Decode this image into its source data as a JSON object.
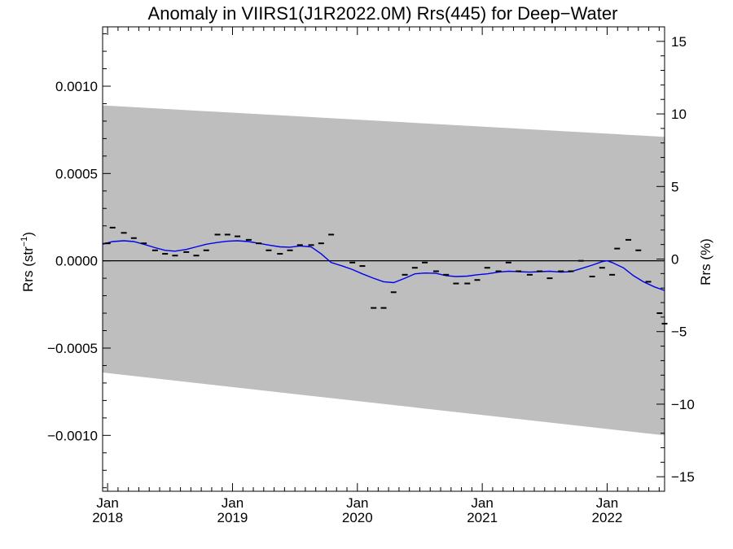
{
  "chart_data": {
    "type": "line",
    "title": "Anomaly in VIIRS1(J1R2022.0M) Rrs(445) for Deep−Water",
    "ylabel_main": "Rrs (str",
    "ylabel_sup": "−1",
    "ylabel_close": ")",
    "ylabel_right": "Rrs (%)",
    "xlim": [
      2017.96,
      2022.46
    ],
    "ylim": [
      -0.00132,
      0.00134
    ],
    "ylim_right": [
      -16.0,
      16.0
    ],
    "x_ticks": [
      {
        "x": 2018.0,
        "month": "Jan",
        "year": "2018"
      },
      {
        "x": 2019.0,
        "month": "Jan",
        "year": "2019"
      },
      {
        "x": 2020.0,
        "month": "Jan",
        "year": "2020"
      },
      {
        "x": 2021.0,
        "month": "Jan",
        "year": "2021"
      },
      {
        "x": 2022.0,
        "month": "Jan",
        "year": "2022"
      }
    ],
    "y_ticks": [
      {
        "v": 0.001,
        "label": "0.0010"
      },
      {
        "v": 0.0005,
        "label": "0.0005"
      },
      {
        "v": 0.0,
        "label": "0.0000"
      },
      {
        "v": -0.0005,
        "label": "−0.0005"
      },
      {
        "v": -0.001,
        "label": "−0.0010"
      }
    ],
    "y_ticks_right": [
      {
        "v": 15,
        "label": "15"
      },
      {
        "v": 10,
        "label": "10"
      },
      {
        "v": 5,
        "label": "5"
      },
      {
        "v": 0,
        "label": "0"
      },
      {
        "v": -5,
        "label": "−5"
      },
      {
        "v": -10,
        "label": "−10"
      },
      {
        "v": -15,
        "label": "−15"
      }
    ],
    "band": {
      "upper": [
        [
          2017.96,
          0.00089
        ],
        [
          2022.46,
          0.00071
        ]
      ],
      "lower": [
        [
          2017.96,
          -0.00064
        ],
        [
          2022.46,
          -0.001
        ]
      ],
      "color": "#bebebe"
    },
    "zero_line": 0.0,
    "monthly_points": [
      [
        2018.0,
        0.0001
      ],
      [
        2018.04,
        0.00019
      ],
      [
        2018.13,
        0.00016
      ],
      [
        2018.21,
        0.00013
      ],
      [
        2018.29,
        0.0001
      ],
      [
        2018.38,
        6e-05
      ],
      [
        2018.46,
        4e-05
      ],
      [
        2018.54,
        3e-05
      ],
      [
        2018.63,
        5e-05
      ],
      [
        2018.71,
        3e-05
      ],
      [
        2018.79,
        6e-05
      ],
      [
        2018.88,
        0.00015
      ],
      [
        2018.96,
        0.00015
      ],
      [
        2019.04,
        0.00014
      ],
      [
        2019.13,
        0.00012
      ],
      [
        2019.21,
        0.0001
      ],
      [
        2019.29,
        6e-05
      ],
      [
        2019.38,
        4e-05
      ],
      [
        2019.46,
        6e-05
      ],
      [
        2019.54,
        9e-05
      ],
      [
        2019.63,
        9e-05
      ],
      [
        2019.71,
        0.0001
      ],
      [
        2019.79,
        0.00015
      ],
      [
        2019.96,
        -1e-05
      ],
      [
        2020.04,
        -3e-05
      ],
      [
        2020.13,
        -0.00027
      ],
      [
        2020.21,
        -0.00027
      ],
      [
        2020.29,
        -0.00018
      ],
      [
        2020.38,
        -8e-05
      ],
      [
        2020.46,
        -4e-05
      ],
      [
        2020.54,
        -1e-05
      ],
      [
        2020.63,
        -6e-05
      ],
      [
        2020.71,
        -8e-05
      ],
      [
        2020.79,
        -0.00013
      ],
      [
        2020.88,
        -0.00013
      ],
      [
        2020.96,
        -0.00011
      ],
      [
        2021.04,
        -4e-05
      ],
      [
        2021.13,
        -6e-05
      ],
      [
        2021.21,
        -1e-05
      ],
      [
        2021.29,
        -6e-05
      ],
      [
        2021.38,
        -8e-05
      ],
      [
        2021.46,
        -6e-05
      ],
      [
        2021.54,
        -0.0001
      ],
      [
        2021.63,
        -6e-05
      ],
      [
        2021.71,
        -6e-05
      ],
      [
        2021.79,
        0.0
      ],
      [
        2021.88,
        -9e-05
      ],
      [
        2021.96,
        -4e-05
      ],
      [
        2022.04,
        -8e-05
      ],
      [
        2022.08,
        7e-05
      ],
      [
        2022.17,
        0.00012
      ],
      [
        2022.25,
        6e-05
      ],
      [
        2022.33,
        -0.00012
      ],
      [
        2022.42,
        -0.0003
      ],
      [
        2022.46,
        -0.00036
      ]
    ],
    "smoothed_series": {
      "color": "#0000ee",
      "points": [
        [
          2017.96,
          9.5e-05
        ],
        [
          2018.04,
          0.00011
        ],
        [
          2018.13,
          0.000115
        ],
        [
          2018.21,
          0.00011
        ],
        [
          2018.29,
          9.5e-05
        ],
        [
          2018.38,
          7.5e-05
        ],
        [
          2018.46,
          6e-05
        ],
        [
          2018.54,
          5.5e-05
        ],
        [
          2018.63,
          6.5e-05
        ],
        [
          2018.71,
          8e-05
        ],
        [
          2018.79,
          9.5e-05
        ],
        [
          2018.88,
          0.000105
        ],
        [
          2018.96,
          0.000112
        ],
        [
          2019.04,
          0.000115
        ],
        [
          2019.13,
          0.00011
        ],
        [
          2019.21,
          0.0001
        ],
        [
          2019.29,
          9e-05
        ],
        [
          2019.38,
          8e-05
        ],
        [
          2019.46,
          7.8e-05
        ],
        [
          2019.54,
          8.5e-05
        ],
        [
          2019.63,
          8e-05
        ],
        [
          2019.71,
          4e-05
        ],
        [
          2019.79,
          -1e-05
        ],
        [
          2019.88,
          -3e-05
        ],
        [
          2019.96,
          -5e-05
        ],
        [
          2020.04,
          -7.5e-05
        ],
        [
          2020.13,
          -0.0001
        ],
        [
          2020.21,
          -0.00012
        ],
        [
          2020.29,
          -0.000125
        ],
        [
          2020.38,
          -0.0001
        ],
        [
          2020.46,
          -7.5e-05
        ],
        [
          2020.54,
          -7e-05
        ],
        [
          2020.63,
          -7.2e-05
        ],
        [
          2020.71,
          -8.5e-05
        ],
        [
          2020.79,
          -9e-05
        ],
        [
          2020.88,
          -8.8e-05
        ],
        [
          2020.96,
          -8e-05
        ],
        [
          2021.04,
          -7.5e-05
        ],
        [
          2021.13,
          -6.5e-05
        ],
        [
          2021.21,
          -6e-05
        ],
        [
          2021.29,
          -6.2e-05
        ],
        [
          2021.38,
          -6.5e-05
        ],
        [
          2021.46,
          -6.2e-05
        ],
        [
          2021.54,
          -6e-05
        ],
        [
          2021.63,
          -6.5e-05
        ],
        [
          2021.71,
          -6.2e-05
        ],
        [
          2021.79,
          -4.5e-05
        ],
        [
          2021.88,
          -2.5e-05
        ],
        [
          2021.96,
          -5e-06
        ],
        [
          2022.0,
          0.0
        ],
        [
          2022.04,
          -1e-05
        ],
        [
          2022.13,
          -4e-05
        ],
        [
          2022.21,
          -8.5e-05
        ],
        [
          2022.29,
          -0.00012
        ],
        [
          2022.38,
          -0.00015
        ],
        [
          2022.46,
          -0.00017
        ]
      ]
    },
    "grid": false,
    "legend": "none"
  }
}
